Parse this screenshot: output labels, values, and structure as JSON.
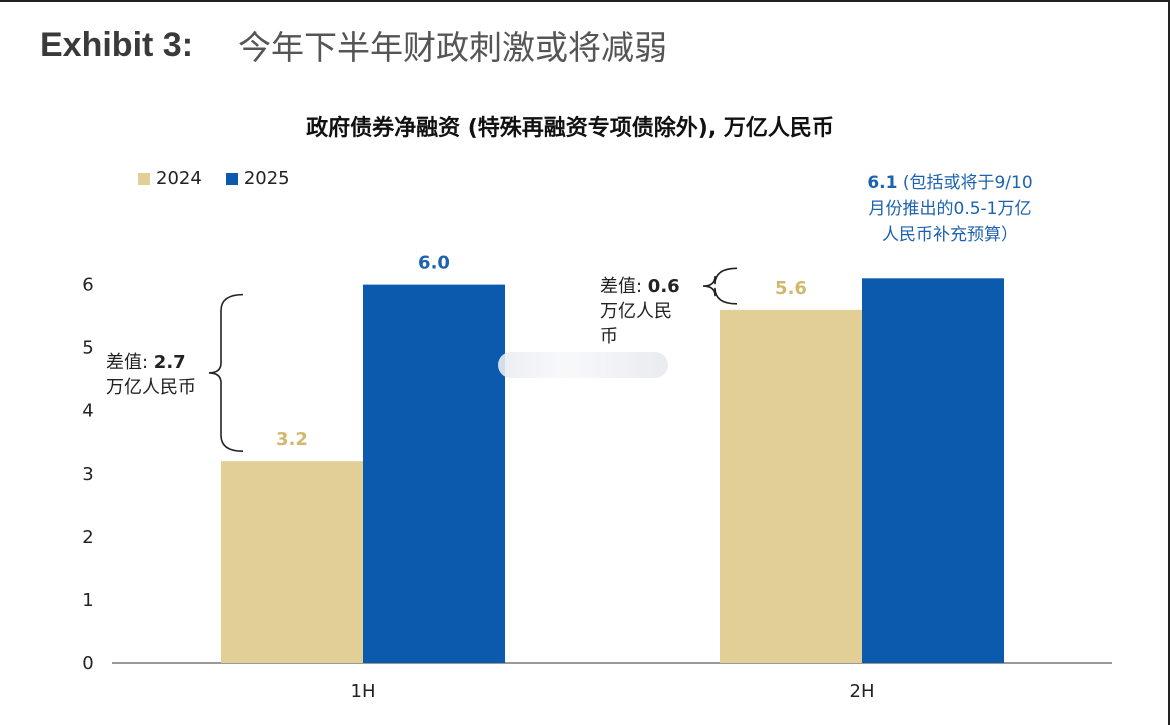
{
  "header": {
    "exhibit_label": "Exhibit 3:",
    "title": "今年下半年财政刺激或将减弱"
  },
  "chart_data": {
    "type": "bar",
    "title": "政府债券净融资 (特殊再融资专项债除外), 万亿人民币",
    "categories": [
      "1H",
      "2H"
    ],
    "series": [
      {
        "name": "2024",
        "values": [
          3.2,
          5.6
        ],
        "color": "#e1cf96",
        "label_color": "#d2b86f",
        "labels": [
          "3.2",
          "5.6"
        ]
      },
      {
        "name": "2025",
        "values": [
          6.0,
          6.1
        ],
        "color": "#0b5aad",
        "label_color": "#1d62b0",
        "labels": [
          "6.0",
          ""
        ]
      }
    ],
    "ylim": [
      0,
      6.2
    ],
    "yticks": [
      "0",
      "1",
      "2",
      "3",
      "4",
      "5",
      "6"
    ],
    "grid": false,
    "legend_position": "top-left",
    "annotations": {
      "diff_1h_prefix": "差值: ",
      "diff_1h_value": "2.7",
      "diff_1h_unit": "万亿人民币",
      "diff_2h_prefix": "差值: ",
      "diff_2h_value": "0.6",
      "diff_2h_unit": "万亿人民币",
      "note_2h_value": "6.1",
      "note_2h_line1": " (包括或将于9/10",
      "note_2h_line2": "月份推出的0.5-1万亿",
      "note_2h_line3": "人民币补充预算）"
    }
  }
}
